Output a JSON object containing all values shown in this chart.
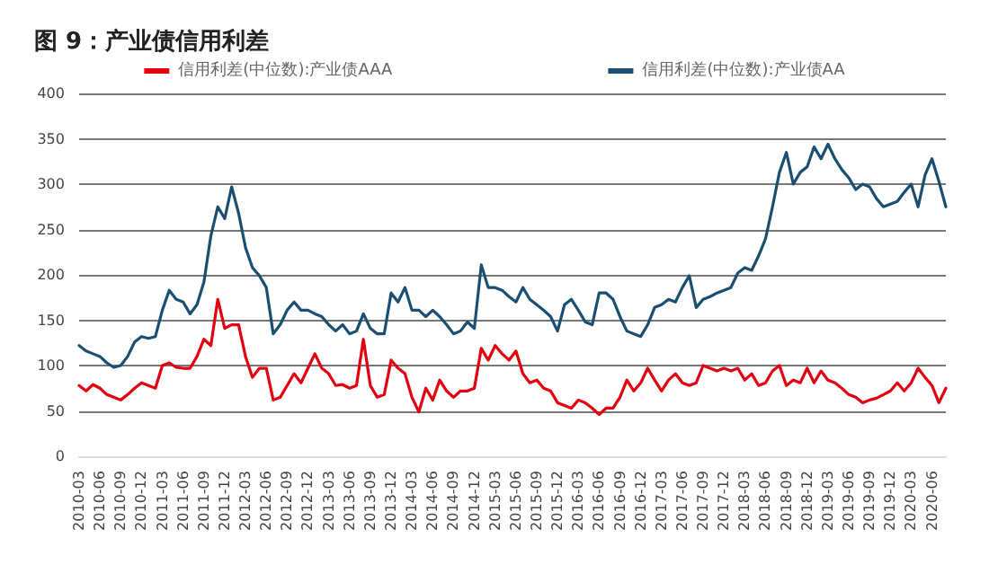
{
  "chart_data": {
    "type": "line",
    "title": "图 9：产业债信用利差",
    "categories": [
      "2010-03",
      null,
      null,
      "2010-06",
      null,
      null,
      "2010-09",
      null,
      null,
      "2010-12",
      null,
      null,
      "2011-03",
      null,
      null,
      "2011-06",
      null,
      null,
      "2011-09",
      null,
      null,
      "2011-12",
      null,
      null,
      "2012-03",
      null,
      null,
      "2012-06",
      null,
      null,
      "2012-09",
      null,
      null,
      "2012-12",
      null,
      null,
      "2013-03",
      null,
      null,
      "2013-06",
      null,
      null,
      "2013-09",
      null,
      null,
      "2013-12",
      null,
      null,
      "2014-03",
      null,
      null,
      "2014-06",
      null,
      null,
      "2014-09",
      null,
      null,
      "2014-12",
      null,
      null,
      "2015-03",
      null,
      null,
      "2015-06",
      null,
      null,
      "2015-09",
      null,
      null,
      "2015-12",
      null,
      null,
      "2016-03",
      null,
      null,
      "2016-06",
      null,
      null,
      "2016-09",
      null,
      null,
      "2016-12",
      null,
      null,
      "2017-03",
      null,
      null,
      "2017-06",
      null,
      null,
      "2017-09",
      null,
      null,
      "2017-12",
      null,
      null,
      "2018-03",
      null,
      null,
      "2018-06",
      null,
      null,
      "2018-09",
      null,
      null,
      "2018-12",
      null,
      null,
      "2019-03",
      null,
      null,
      "2019-06",
      null,
      null,
      "2019-09",
      null,
      null,
      "2019-12",
      null,
      null,
      "2020-03",
      null,
      null,
      "2020-06",
      null,
      null
    ],
    "series": [
      {
        "name": "信用利差(中位数):产业债AAA",
        "color": "#e3000f",
        "values": [
          78,
          72,
          79,
          75,
          68,
          65,
          62,
          68,
          75,
          81,
          78,
          75,
          100,
          103,
          98,
          97,
          97,
          110,
          129,
          122,
          173,
          141,
          145,
          145,
          110,
          87,
          97,
          97,
          62,
          65,
          78,
          91,
          81,
          97,
          113,
          97,
          91,
          78,
          79,
          75,
          78,
          129,
          78,
          65,
          68,
          106,
          97,
          91,
          65,
          49,
          75,
          62,
          84,
          72,
          65,
          72,
          72,
          75,
          119,
          106,
          122,
          113,
          106,
          116,
          91,
          81,
          84,
          75,
          72,
          59,
          56,
          53,
          62,
          59,
          53,
          46,
          53,
          53,
          65,
          84,
          72,
          81,
          97,
          84,
          72,
          84,
          91,
          81,
          78,
          81,
          100,
          97,
          94,
          97,
          94,
          97,
          84,
          91,
          78,
          81,
          94,
          100,
          78,
          84,
          81,
          97,
          81,
          94,
          84,
          81,
          75,
          68,
          65,
          59,
          62,
          64,
          68,
          72,
          81,
          72,
          81,
          97,
          87,
          78,
          59,
          75
        ]
      },
      {
        "name": "信用利差(中位数):产业债AA",
        "color": "#1b4f72",
        "values": [
          122,
          116,
          113,
          110,
          103,
          98,
          100,
          110,
          126,
          132,
          130,
          132,
          161,
          183,
          173,
          170,
          157,
          167,
          192,
          243,
          275,
          262,
          297,
          268,
          230,
          208,
          199,
          186,
          135,
          145,
          161,
          170,
          161,
          161,
          157,
          154,
          145,
          138,
          145,
          135,
          138,
          157,
          141,
          135,
          135,
          180,
          170,
          186,
          161,
          161,
          154,
          161,
          154,
          145,
          135,
          138,
          148,
          141,
          211,
          186,
          186,
          183,
          176,
          170,
          186,
          173,
          167,
          161,
          154,
          138,
          167,
          173,
          161,
          148,
          145,
          180,
          180,
          173,
          154,
          138,
          135,
          132,
          145,
          164,
          167,
          173,
          170,
          186,
          199,
          164,
          173,
          176,
          180,
          183,
          186,
          202,
          208,
          205,
          221,
          240,
          275,
          313,
          335,
          300,
          313,
          319,
          341,
          328,
          344,
          328,
          316,
          307,
          294,
          300,
          297,
          284,
          275,
          278,
          281,
          291,
          300,
          275,
          310,
          328,
          303,
          275
        ]
      }
    ],
    "ylim": [
      0,
      400
    ],
    "yticks": [
      0,
      50,
      100,
      150,
      200,
      250,
      300,
      350,
      400
    ],
    "grid": "y",
    "legend": "top",
    "marker": "none",
    "line_style": "solid"
  }
}
